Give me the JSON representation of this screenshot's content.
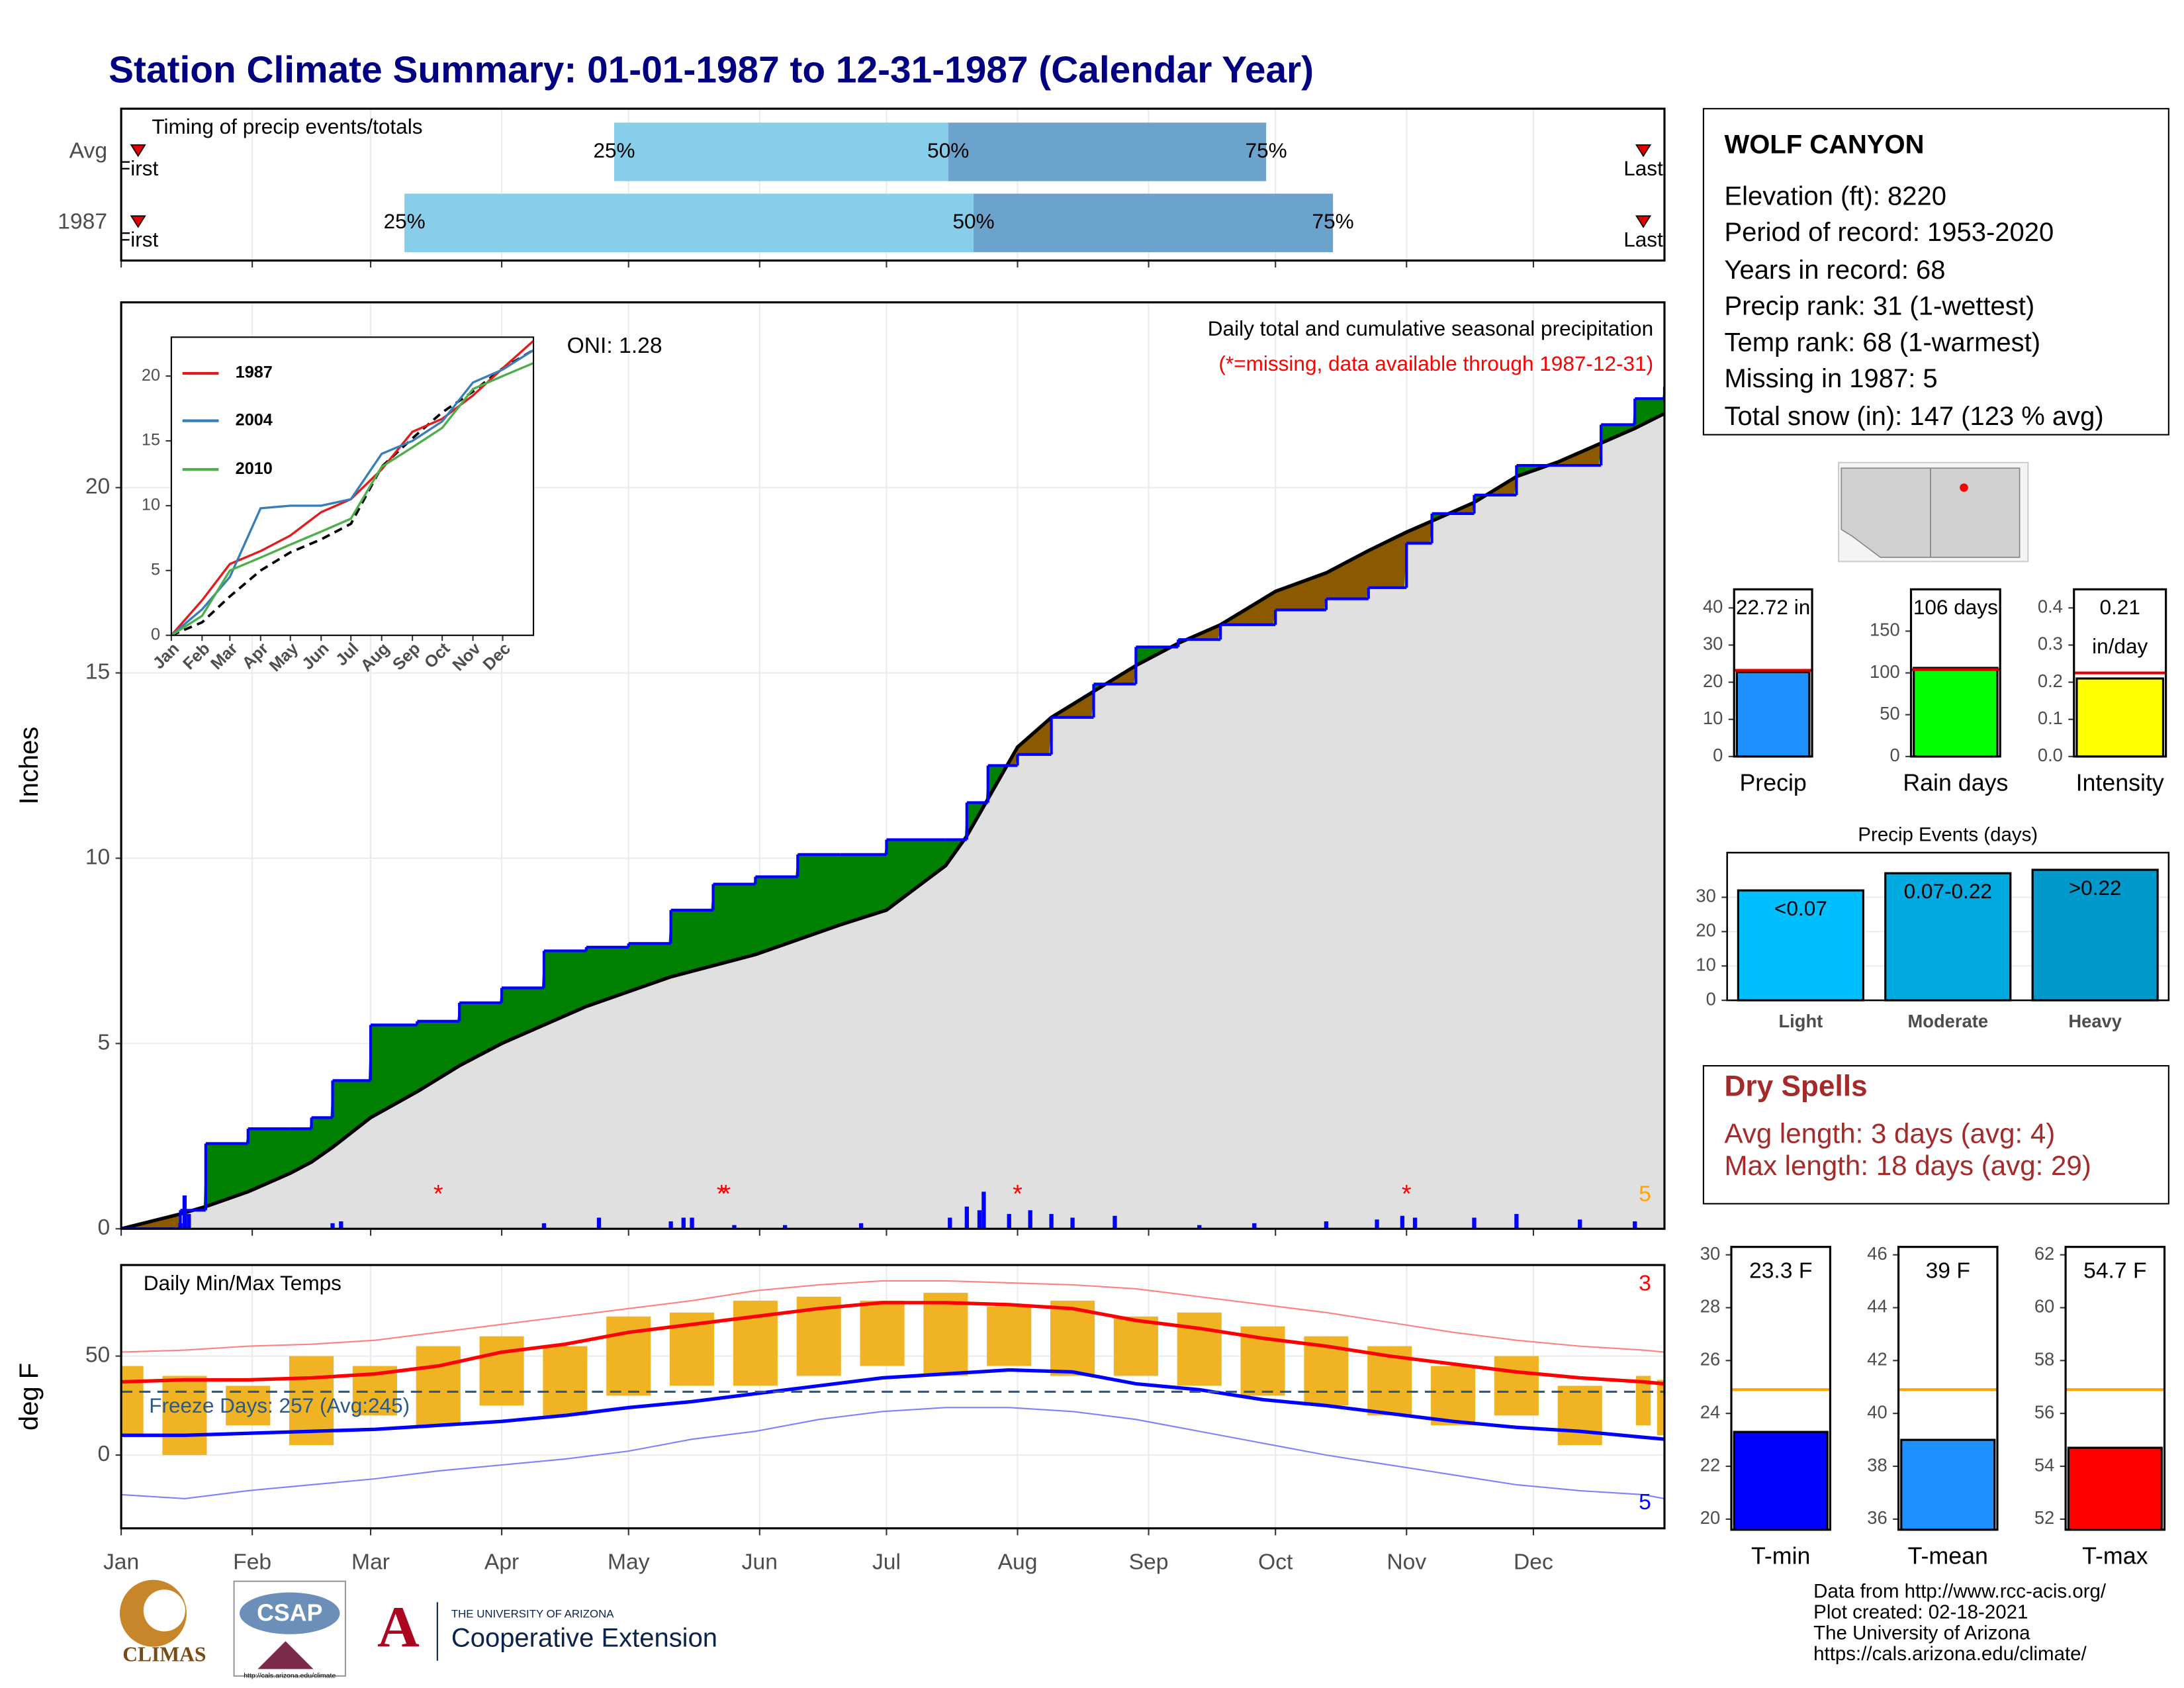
{
  "title": "Station Climate Summary: 01-01-1987 to 12-31-1987 (Calendar Year)",
  "chart_data": [
    {
      "type": "timing",
      "title": "Timing of precip events/totals",
      "xlim": [
        0,
        365
      ],
      "labels": {
        "first": "First",
        "q25": "25%",
        "q50": "50%",
        "q75": "75%",
        "last": "Last"
      },
      "colors": {
        "lower": "#87ceeb",
        "upper": "#6ba3cc",
        "marker": "#e00000"
      },
      "rows": [
        {
          "name": "Avg",
          "first": 4,
          "q25": 116.6,
          "q50": 195.6,
          "q75": 270.8,
          "last": 360
        },
        {
          "name": "1987",
          "first": 4,
          "q25": 67,
          "q50": 201.6,
          "q75": 286.6,
          "last": 360
        }
      ]
    },
    {
      "type": "cumulative",
      "subtitle": "Daily total and cumulative seasonal precipitation",
      "note": "(*=missing, data available through 1987-12-31)",
      "oni": "ONI: 1.28",
      "missing_count": "5",
      "ylabel": "Inches",
      "xlim": [
        0,
        365
      ],
      "ylim": [
        0,
        25
      ],
      "yticks": [
        0,
        5,
        10,
        15,
        20
      ],
      "grid": true,
      "x": [
        0,
        14,
        20,
        30,
        40,
        45,
        50,
        59,
        70,
        80,
        90,
        100,
        110,
        120,
        130,
        140,
        150,
        160,
        170,
        181,
        195,
        200,
        205,
        212,
        220,
        230,
        240,
        250,
        260,
        273,
        285,
        295,
        304,
        310,
        320,
        330,
        340,
        350,
        358,
        365
      ],
      "observed": {
        "color": "#0000ff",
        "values": [
          0,
          0.5,
          2.3,
          2.7,
          2.7,
          3.0,
          4.0,
          5.5,
          5.6,
          6.1,
          6.5,
          7.5,
          7.6,
          7.7,
          8.6,
          9.3,
          9.5,
          10.1,
          10.1,
          10.5,
          10.5,
          11.5,
          12.5,
          12.8,
          13.8,
          14.7,
          15.7,
          15.9,
          16.3,
          16.7,
          17.0,
          17.3,
          18.5,
          19.3,
          19.8,
          20.6,
          20.6,
          21.7,
          22.4,
          22.72
        ]
      },
      "average": {
        "color": "#000000",
        "values": [
          0,
          0.4,
          0.6,
          1.0,
          1.5,
          1.8,
          2.2,
          3.0,
          3.7,
          4.4,
          5.0,
          5.5,
          6.0,
          6.4,
          6.8,
          7.1,
          7.4,
          7.8,
          8.2,
          8.6,
          9.8,
          10.6,
          11.6,
          13.0,
          13.8,
          14.5,
          15.2,
          15.8,
          16.3,
          17.2,
          17.7,
          18.3,
          18.8,
          19.1,
          19.6,
          20.3,
          20.7,
          21.2,
          21.6,
          22.0
        ]
      },
      "fill_colors": {
        "above": "#008000",
        "below": "#8b5a00",
        "base": "#e0e0e0"
      },
      "daily": {
        "color": "#0000ff",
        "days": [
          14,
          15,
          16,
          50,
          52,
          100,
          113,
          130,
          133,
          135,
          145,
          157,
          175,
          196,
          200,
          203,
          204,
          210,
          215,
          220,
          225,
          235,
          255,
          268,
          285,
          297,
          303,
          306,
          320,
          330,
          345,
          358
        ],
        "values": [
          0.15,
          0.9,
          0.4,
          0.15,
          0.2,
          0.15,
          0.3,
          0.2,
          0.3,
          0.3,
          0.1,
          0.1,
          0.15,
          0.3,
          0.6,
          0.5,
          1.0,
          0.4,
          0.5,
          0.4,
          0.3,
          0.35,
          0.1,
          0.15,
          0.2,
          0.25,
          0.35,
          0.3,
          0.3,
          0.4,
          0.25,
          0.2
        ]
      },
      "missing": {
        "symbol": "*",
        "days": [
          75,
          142,
          143,
          212,
          304
        ],
        "color": "#ff0000"
      }
    },
    {
      "type": "line",
      "xlim": [
        0,
        365
      ],
      "ylim": [
        0,
        23
      ],
      "yticks": [
        0,
        5,
        10,
        15,
        20
      ],
      "x": [
        0,
        31,
        59,
        90,
        120,
        151,
        181,
        212,
        243,
        273,
        304,
        334,
        365
      ],
      "series": [
        {
          "name": "1987",
          "color": "#e41a1c",
          "values": [
            0,
            2.7,
            5.5,
            6.5,
            7.7,
            9.5,
            10.5,
            12.8,
            15.7,
            16.7,
            18.5,
            20.6,
            22.72
          ]
        },
        {
          "name": "2004",
          "color": "#377eb8",
          "values": [
            0,
            2.0,
            4.5,
            9.8,
            10.0,
            10.0,
            10.5,
            14.0,
            15.0,
            16.5,
            19.5,
            20.5,
            22.0
          ]
        },
        {
          "name": "2010",
          "color": "#4daf4a",
          "values": [
            0,
            1.5,
            5.0,
            6.0,
            7.0,
            8.0,
            9.0,
            13.0,
            14.5,
            16.0,
            19.0,
            20.0,
            21.0
          ]
        }
      ],
      "average": {
        "color": "#000000",
        "values": [
          0,
          1.0,
          3.0,
          5.0,
          6.4,
          7.4,
          8.6,
          13.0,
          15.2,
          17.2,
          18.8,
          20.6,
          22.0
        ]
      }
    },
    {
      "type": "temperature",
      "title": "Daily Min/Max Temps",
      "freeze_label": "Freeze Days: 257 (Avg:245)",
      "high_count": "3",
      "low_count": "5",
      "ylabel": "deg F",
      "xlim": [
        0,
        365
      ],
      "ylim": [
        -37,
        96
      ],
      "yticks": [
        0,
        50
      ],
      "grid": true,
      "freeze_line": 32,
      "xticks": [
        {
          "value": 0,
          "label": "Jan"
        },
        {
          "value": 31,
          "label": "Feb"
        },
        {
          "value": 59,
          "label": "Mar"
        },
        {
          "value": 90,
          "label": "Apr"
        },
        {
          "value": 120,
          "label": "May"
        },
        {
          "value": 151,
          "label": "Jun"
        },
        {
          "value": 181,
          "label": "Jul"
        },
        {
          "value": 212,
          "label": "Aug"
        },
        {
          "value": 243,
          "label": "Sep"
        },
        {
          "value": 273,
          "label": "Oct"
        },
        {
          "value": 304,
          "label": "Nov"
        },
        {
          "value": 334,
          "label": "Dec"
        }
      ],
      "x": [
        0,
        15,
        30,
        45,
        60,
        75,
        90,
        105,
        120,
        135,
        150,
        165,
        180,
        195,
        210,
        225,
        240,
        255,
        270,
        285,
        300,
        315,
        330,
        345,
        360,
        365
      ],
      "obs_max": [
        45,
        40,
        35,
        50,
        45,
        55,
        60,
        55,
        70,
        72,
        78,
        80,
        78,
        82,
        75,
        78,
        70,
        72,
        65,
        60,
        55,
        45,
        50,
        35,
        40,
        38
      ],
      "obs_min": [
        10,
        0,
        15,
        5,
        20,
        15,
        25,
        20,
        30,
        35,
        35,
        40,
        45,
        40,
        45,
        40,
        40,
        35,
        30,
        25,
        20,
        15,
        20,
        5,
        15,
        10
      ],
      "avg_max": [
        37,
        38,
        38,
        39,
        41,
        45,
        52,
        56,
        62,
        66,
        70,
        74,
        77,
        77,
        76,
        74,
        68,
        64,
        59,
        55,
        50,
        46,
        42,
        39,
        37,
        36
      ],
      "avg_min": [
        10,
        10,
        11,
        12,
        13,
        15,
        17,
        20,
        24,
        27,
        31,
        35,
        39,
        41,
        43,
        42,
        36,
        33,
        28,
        25,
        21,
        17,
        14,
        12,
        9,
        8
      ],
      "record_high": [
        52,
        53,
        55,
        56,
        58,
        62,
        66,
        70,
        74,
        78,
        83,
        86,
        88,
        88,
        87,
        86,
        84,
        80,
        76,
        72,
        67,
        62,
        58,
        55,
        53,
        52
      ],
      "record_low": [
        -20,
        -22,
        -18,
        -15,
        -12,
        -8,
        -5,
        -2,
        2,
        8,
        12,
        18,
        22,
        24,
        24,
        22,
        18,
        12,
        6,
        0,
        -5,
        -10,
        -15,
        -18,
        -20,
        -22
      ],
      "colors": {
        "obs": "#f0b323",
        "avg_max": "#ff0000",
        "avg_min": "#0000ff",
        "record_high": "#ff8080",
        "record_low": "#8080ff",
        "freeze": "#2a5a8a"
      }
    },
    {
      "type": "gauge",
      "label": "Precip",
      "value": 22.72,
      "value_label": "22.72 in",
      "average": 23.2,
      "ylim": [
        0,
        45
      ],
      "yticks": [
        0,
        10,
        20,
        30,
        40
      ],
      "color": "#1e90ff",
      "avg_color": "#e00000"
    },
    {
      "type": "gauge",
      "label": "Rain days",
      "value": 106,
      "value_label": "106 days",
      "average": 104,
      "ylim": [
        0,
        200
      ],
      "yticks": [
        0,
        50,
        100,
        150
      ],
      "color": "#00ff00",
      "avg_color": "#e00000"
    },
    {
      "type": "gauge",
      "label": "Intensity",
      "value": 0.21,
      "value_label": "0.21",
      "value_unit": "in/day",
      "average": 0.225,
      "ylim": [
        0,
        0.45
      ],
      "yticks": [
        {
          "value": 0,
          "label": "0.0"
        },
        0.1,
        0.2,
        0.3,
        0.4
      ],
      "color": "#ffff00",
      "avg_color": "#e00000"
    },
    {
      "type": "bar",
      "title": "Precip Events (days)",
      "categories": [
        "Light",
        "Moderate",
        "Heavy"
      ],
      "values": [
        32,
        37,
        38
      ],
      "inner_labels": [
        "<0.07",
        "0.07-0.22",
        ">0.22"
      ],
      "ylim": [
        0,
        43
      ],
      "yticks": [
        0,
        10,
        20,
        30
      ],
      "colors": [
        "#00bfff",
        "#00a9e0",
        "#0099cc"
      ],
      "grid": true
    },
    {
      "type": "gauge",
      "label": "T-min",
      "value": 23.3,
      "value_label": "23.3 F",
      "average": 24.9,
      "ylim": [
        19.6,
        30.3
      ],
      "yticks": [
        20,
        22,
        24,
        26,
        28,
        30
      ],
      "color": "#0000ff",
      "avg_color": "#ffa500"
    },
    {
      "type": "gauge",
      "label": "T-mean",
      "value": 39,
      "value_label": "39 F",
      "average": 40.9,
      "ylim": [
        35.6,
        46.3
      ],
      "yticks": [
        36,
        38,
        40,
        42,
        44,
        46
      ],
      "color": "#1e90ff",
      "avg_color": "#ffa500"
    },
    {
      "type": "gauge",
      "label": "T-max",
      "value": 54.7,
      "value_label": "54.7 F",
      "average": 56.9,
      "ylim": [
        51.6,
        62.3
      ],
      "yticks": [
        52,
        54,
        56,
        58,
        60,
        62
      ],
      "color": "#ff0000",
      "avg_color": "#ffa500"
    }
  ],
  "station": {
    "name": "WOLF CANYON",
    "lines": [
      "Elevation (ft): 8220",
      "Period of record: 1953-2020",
      "Years in record: 68",
      "Precip rank: 31 (1-wettest)",
      "Temp rank: 68 (1-warmest)",
      "Missing in 1987: 5",
      "Total snow (in): 147 (123 % avg)"
    ]
  },
  "dry_spells": {
    "title": "Dry Spells",
    "lines": [
      "Avg length: 3 days (avg: 4)",
      "Max length: 18 days (avg: 29)"
    ]
  },
  "footer": [
    "Data from http://www.rcc-acis.org/",
    "Plot created: 02-18-2021",
    "The University of Arizona",
    "https://cals.arizona.edu/climate/"
  ],
  "logos": {
    "climas": "CLIMAS",
    "csap": "CSAP",
    "csap_url": "http://cals.arizona.edu/climate",
    "ua": "THE UNIVERSITY OF ARIZONA",
    "extension": "Cooperative Extension",
    "ua_mark": "A"
  }
}
